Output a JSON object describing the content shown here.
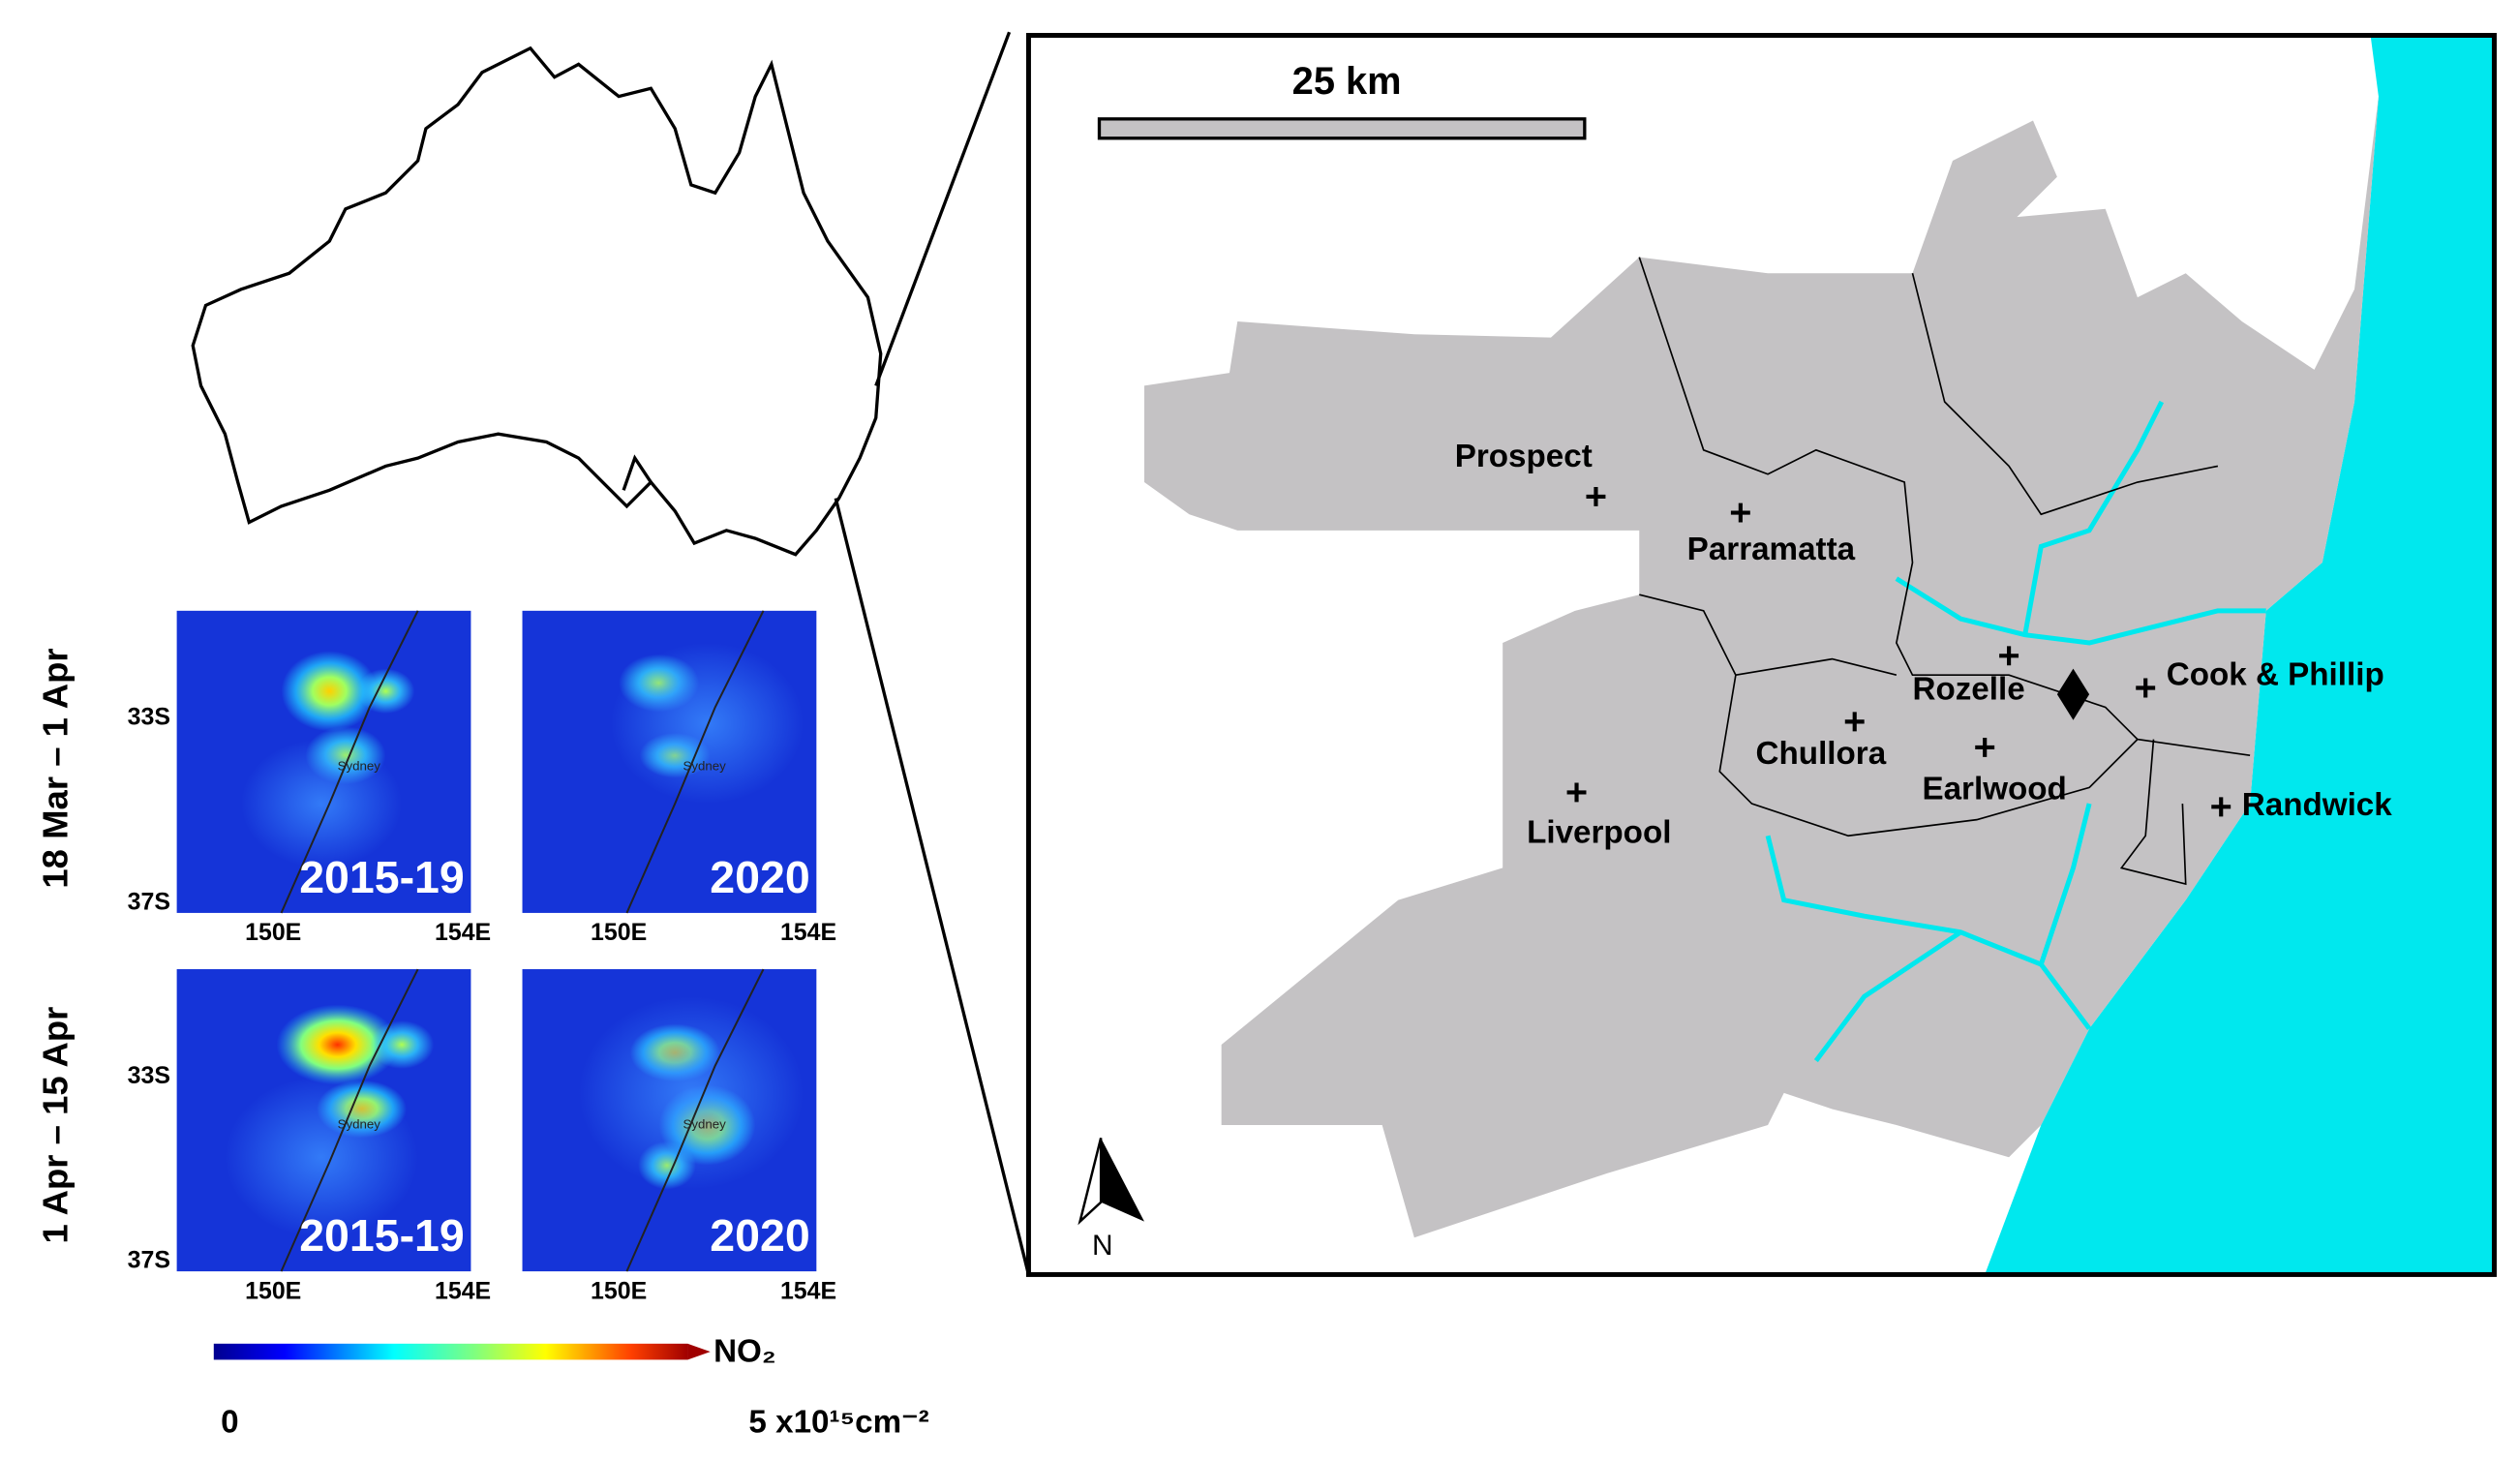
{
  "scale_bar": {
    "label": "25 km"
  },
  "north": "N",
  "sites": [
    {
      "label": "Prospect"
    },
    {
      "label": "Parramatta"
    },
    {
      "label": "Rozelle"
    },
    {
      "label": "Chullora"
    },
    {
      "label": "Earlwood"
    },
    {
      "label": "Cook & Phillip"
    },
    {
      "label": "Randwick"
    },
    {
      "label": "Liverpool"
    }
  ],
  "panels": {
    "rows": [
      {
        "label": "18 Mar – 1 Apr"
      },
      {
        "label": "1 Apr – 15 Apr"
      }
    ],
    "columns": [
      {
        "label": "2015-19"
      },
      {
        "label": "2020"
      }
    ],
    "lat_ticks": [
      "33S",
      "37S"
    ],
    "lon_ticks": [
      "150E",
      "154E"
    ],
    "city": "Sydney"
  },
  "colorbar": {
    "title": "NO₂",
    "min_label": "0",
    "max_label": "5 x10¹⁵cm⁻²"
  }
}
